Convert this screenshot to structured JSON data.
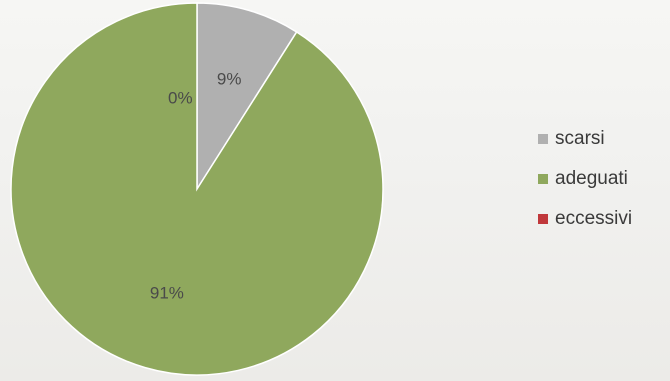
{
  "chart_data": {
    "type": "pie",
    "categories": [
      "scarsi",
      "adeguati",
      "eccessivi"
    ],
    "values": [
      9,
      91,
      0
    ],
    "labels": [
      "9%",
      "91%",
      "0%"
    ],
    "colors": [
      "#b0b0b0",
      "#8fa85d",
      "#c0383b"
    ],
    "legend_position": "right"
  }
}
